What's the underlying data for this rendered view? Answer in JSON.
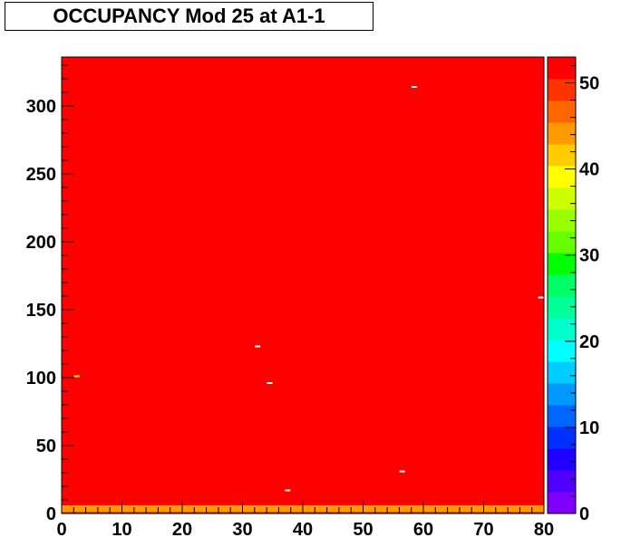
{
  "chart_data": {
    "type": "heatmap",
    "title": "OCCUPANCY Mod 25 at A1-1",
    "xlim": [
      0,
      80
    ],
    "ylim": [
      0,
      336
    ],
    "x_ticks": [
      "0",
      "10",
      "20",
      "30",
      "40",
      "50",
      "60",
      "70",
      "80"
    ],
    "y_ticks": [
      "0",
      "50",
      "100",
      "150",
      "200",
      "250",
      "300"
    ],
    "z_range": [
      0,
      53
    ],
    "colorbar_ticks": [
      "0",
      "10",
      "20",
      "30",
      "40",
      "50"
    ],
    "colorbar_colors": [
      "#7f00ff",
      "#5000ff",
      "#2000ff",
      "#0030ff",
      "#0066ff",
      "#0099ff",
      "#00ccff",
      "#00ffff",
      "#00ffcc",
      "#00ff99",
      "#00ff66",
      "#00ff00",
      "#66ff00",
      "#99ff00",
      "#ccff00",
      "#ffff00",
      "#ffcc00",
      "#ff9900",
      "#ff6600",
      "#ff3300",
      "#ff0000"
    ],
    "base_value": 51,
    "high_columns": [
      [
        5,
        7
      ],
      [
        13,
        15
      ],
      [
        21,
        23
      ],
      [
        29,
        31
      ],
      [
        37,
        39
      ],
      [
        45,
        47
      ],
      [
        53,
        55
      ],
      [
        61,
        63
      ],
      [
        69,
        71
      ],
      [
        77,
        79
      ]
    ],
    "high_value": 53,
    "low_rows_band": [
      1,
      6
    ],
    "low_rows_value": 44,
    "outlier_cells": [
      {
        "x": 2.5,
        "y": 101,
        "value": 40
      },
      {
        "x": 32.5,
        "y": 123,
        "value": 0
      },
      {
        "x": 34.5,
        "y": 96,
        "value": 0
      },
      {
        "x": 37.5,
        "y": 17,
        "value": 0
      },
      {
        "x": 56.5,
        "y": 31,
        "value": 0
      },
      {
        "x": 58.5,
        "y": 314,
        "value": 0
      },
      {
        "x": 79.5,
        "y": 159,
        "value": 0
      }
    ]
  }
}
